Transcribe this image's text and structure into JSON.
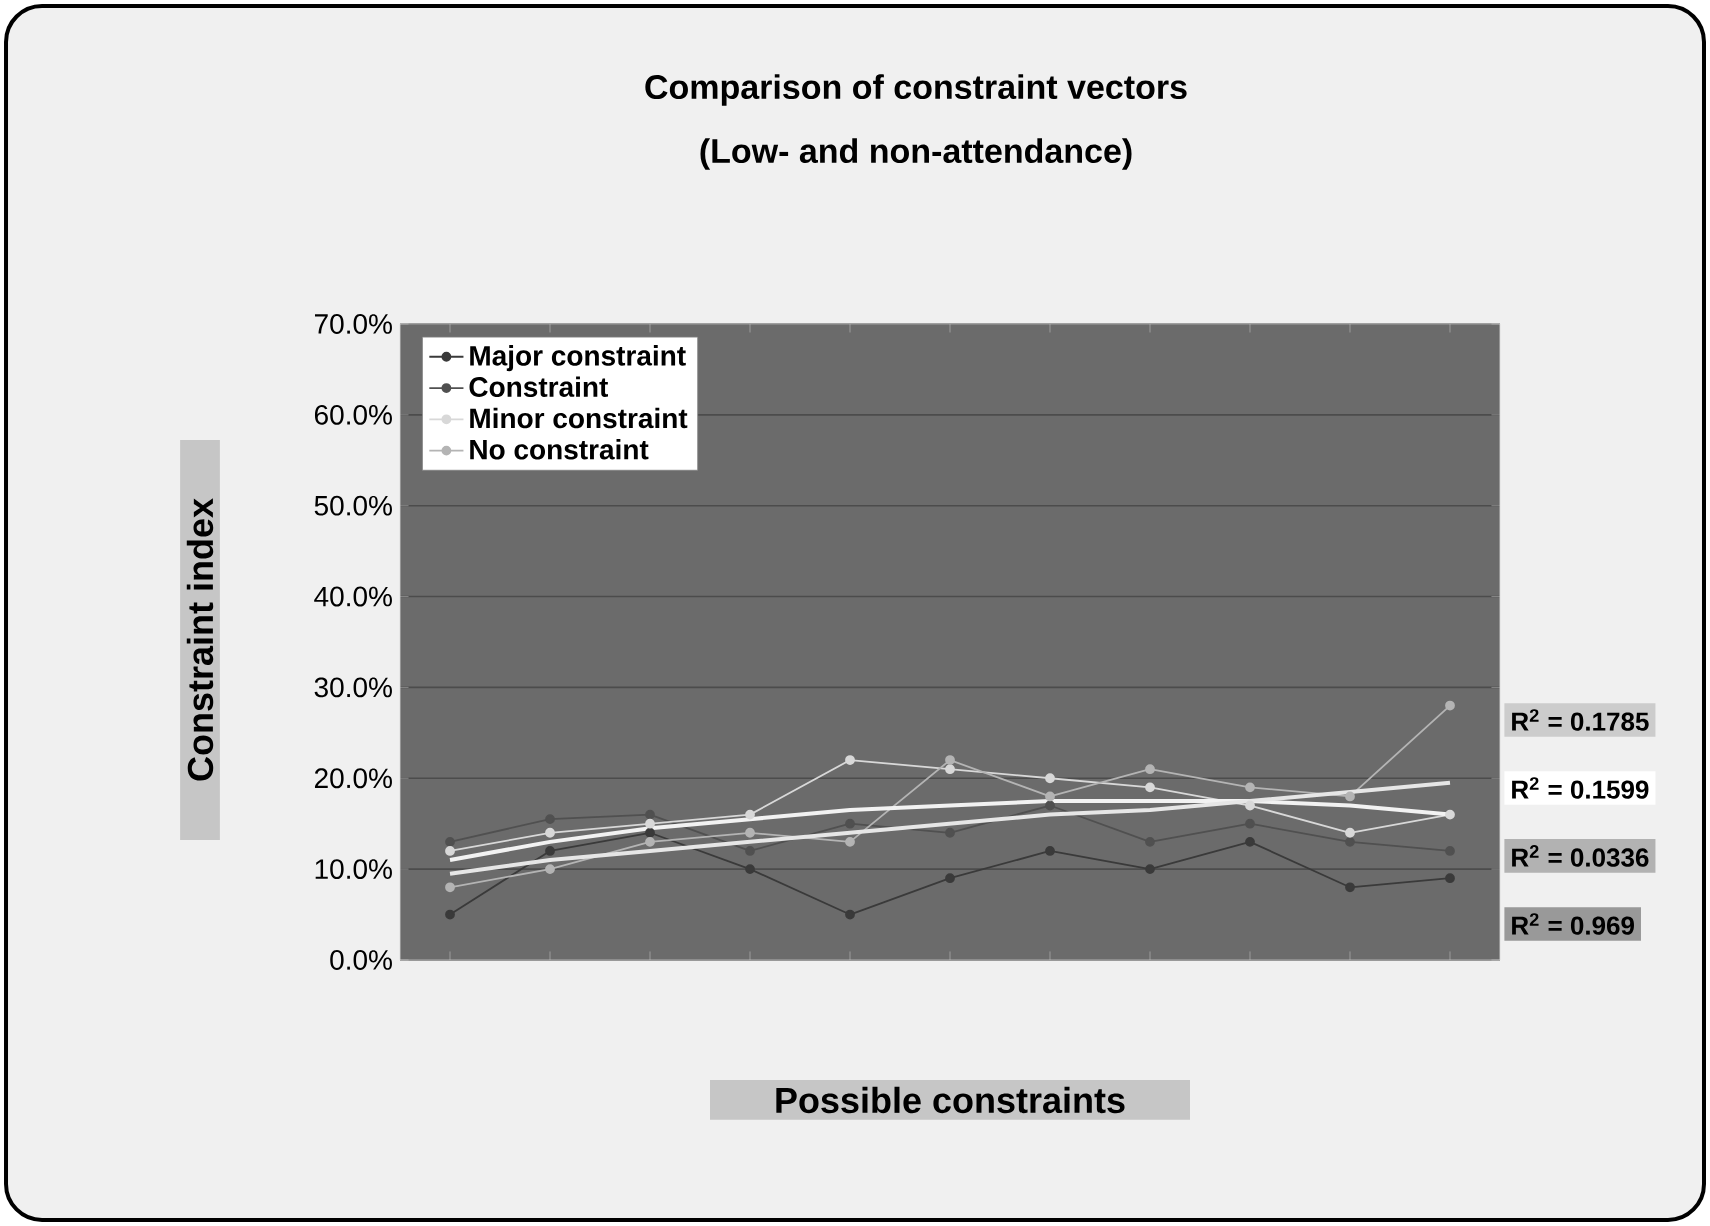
{
  "chart_data": {
    "type": "line",
    "title": "Comparison of constraint vectors",
    "subtitle": "(Low- and non-attendance)",
    "xlabel": "Possible constraints",
    "ylabel": "Constraint index",
    "categories": [
      null,
      null,
      null,
      null,
      null,
      null,
      null,
      null,
      null,
      null,
      null
    ],
    "series": [
      {
        "name": "Major constraint",
        "color": "#3a3a3a",
        "values": [
          5,
          12,
          14,
          10,
          5,
          9,
          12,
          10,
          13,
          8,
          9
        ]
      },
      {
        "name": "Constraint",
        "color": "#505050",
        "values": [
          13,
          15.5,
          16,
          12,
          15,
          14,
          17,
          13,
          15,
          13,
          12
        ]
      },
      {
        "name": "Minor constraint",
        "color": "#d8d8d8",
        "values": [
          12,
          14,
          15,
          16,
          22,
          21,
          20,
          19,
          17,
          14,
          16
        ]
      },
      {
        "name": "No constraint",
        "color": "#b4b4b4",
        "values": [
          8,
          10,
          13,
          14,
          13,
          22,
          18,
          21,
          19,
          18,
          28
        ]
      },
      {
        "color": "#f2f2f2",
        "marker": "none",
        "values": [
          11,
          13,
          14.5,
          15.5,
          16.5,
          17,
          17.5,
          17.5,
          17.5,
          17,
          16
        ]
      },
      {
        "color": "#e6e6e6",
        "marker": "none",
        "values": [
          9.5,
          11,
          12,
          13,
          14,
          15,
          16,
          16.5,
          17.5,
          18.5,
          19.5
        ]
      }
    ],
    "ylim": [
      0,
      70
    ],
    "yticks": [
      {
        "value": 0,
        "label": "0.0%"
      },
      {
        "value": 10,
        "label": "10.0%"
      },
      {
        "value": 20,
        "label": "20.0%"
      },
      {
        "value": 30,
        "label": "30.0%"
      },
      {
        "value": 40,
        "label": "40.0%"
      },
      {
        "value": 50,
        "label": "50.0%"
      },
      {
        "value": 60,
        "label": "60.0%"
      },
      {
        "value": 70,
        "label": "70.0%"
      }
    ],
    "grid": "y",
    "legend": "top left",
    "marker": "circle",
    "tick_labels": "y",
    "annotations": [
      "R$^{2}$ = 0.1785",
      "R$^{2}$ = 0.1599",
      "R$^{2}$ = 0.0336",
      "R$^{2}$ = 0.969"
    ]
  }
}
